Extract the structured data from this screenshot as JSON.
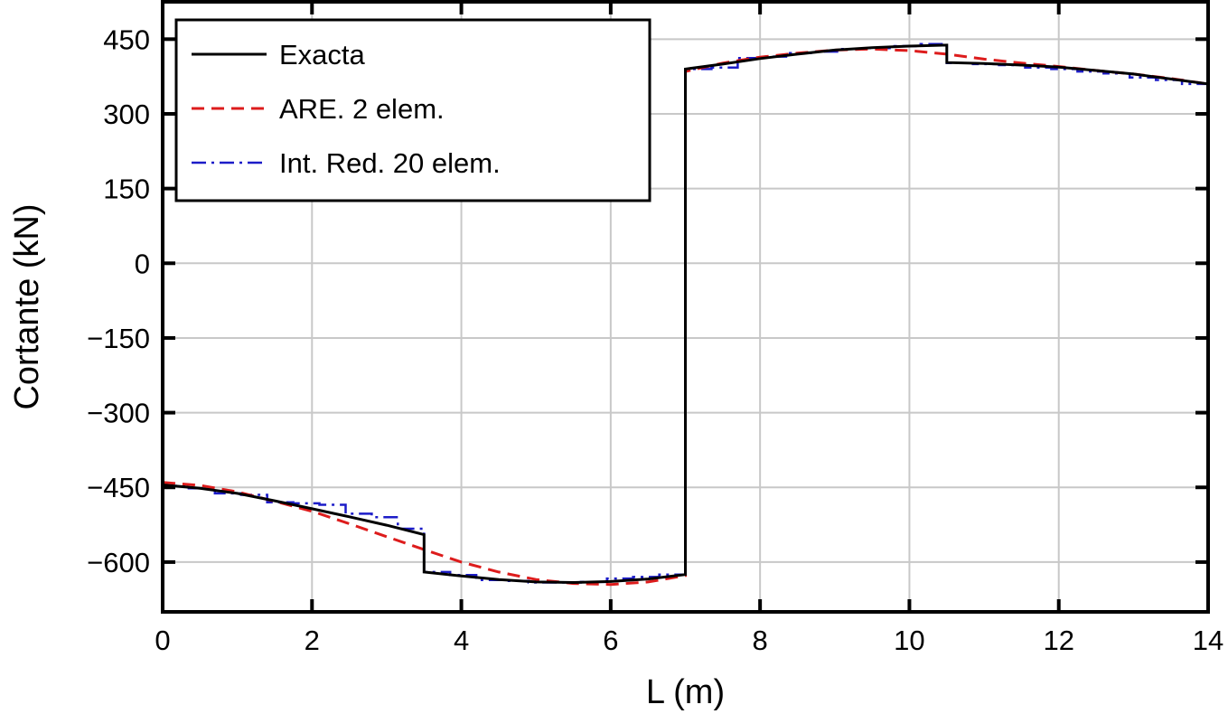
{
  "chart_data": {
    "type": "line",
    "xlabel": "L (m)",
    "ylabel": "Cortante (kN)",
    "xlim": [
      0,
      14
    ],
    "ylim": [
      -700,
      525
    ],
    "xticks": [
      0,
      2,
      4,
      6,
      8,
      10,
      12,
      14
    ],
    "yticks": [
      -600,
      -450,
      -300,
      -150,
      0,
      150,
      300,
      450
    ],
    "xtick_labels": [
      "0",
      "2",
      "4",
      "6",
      "8",
      "10",
      "12",
      "14"
    ],
    "ytick_labels": [
      "−600",
      "−450",
      "−300",
      "−150",
      "0",
      "150",
      "300",
      "450"
    ],
    "grid": true,
    "legend_position": "top-left",
    "series": [
      {
        "name": "Exacta",
        "color": "#000000",
        "style": "solid",
        "x": [
          0,
          0.5,
          1.0,
          1.5,
          2.0,
          2.5,
          3.0,
          3.5,
          3.5,
          4.0,
          4.5,
          5.0,
          5.5,
          6.0,
          6.5,
          7.0,
          7.0,
          7.5,
          8.0,
          8.5,
          9.0,
          9.5,
          10.0,
          10.5,
          10.5,
          11.0,
          11.5,
          12.0,
          12.5,
          13.0,
          13.5,
          14.0
        ],
        "y": [
          -445,
          -452,
          -462,
          -477,
          -493,
          -509,
          -526,
          -545,
          -620,
          -628,
          -635,
          -640,
          -641,
          -639,
          -634,
          -625,
          390,
          400,
          411,
          420,
          428,
          433,
          436,
          438,
          403,
          401,
          398,
          394,
          387,
          380,
          370,
          360
        ]
      },
      {
        "name": "ARE. 2 elem.",
        "color": "#dd1c1c",
        "style": "dashed",
        "x": [
          0,
          0.5,
          1.0,
          1.5,
          2.0,
          2.5,
          3.0,
          3.5,
          4.0,
          4.5,
          5.0,
          5.5,
          6.0,
          6.5,
          7.0,
          7.0,
          7.5,
          8.0,
          8.5,
          9.0,
          9.5,
          10.0,
          10.5,
          11.0,
          11.5,
          12.0,
          12.5,
          13.0,
          13.5,
          14.0
        ],
        "y": [
          -440,
          -446,
          -459,
          -478,
          -498,
          -523,
          -549,
          -575,
          -600,
          -620,
          -635,
          -643,
          -645,
          -640,
          -627,
          385,
          402,
          414,
          422,
          428,
          430,
          427,
          420,
          410,
          402,
          395,
          387,
          380,
          371,
          360
        ]
      },
      {
        "name": "Int. Red. 20 elem.",
        "color": "#1c1cc8",
        "style": "dashdot",
        "x": [
          0,
          0.35,
          0.35,
          0.7,
          0.7,
          1.05,
          1.05,
          1.4,
          1.4,
          1.75,
          1.75,
          2.1,
          2.1,
          2.45,
          2.45,
          2.8,
          2.8,
          3.15,
          3.15,
          3.5,
          3.5,
          3.85,
          3.85,
          4.2,
          4.2,
          4.55,
          4.55,
          4.9,
          4.9,
          5.25,
          5.25,
          5.6,
          5.6,
          5.95,
          5.95,
          6.3,
          6.3,
          6.65,
          6.65,
          7.0,
          7.0,
          7.35,
          7.35,
          7.7,
          7.7,
          8.05,
          8.05,
          8.4,
          8.4,
          8.75,
          8.75,
          9.1,
          9.1,
          9.45,
          9.45,
          9.8,
          9.8,
          10.15,
          10.15,
          10.5,
          10.5,
          10.85,
          10.85,
          11.2,
          11.2,
          11.55,
          11.55,
          11.9,
          11.9,
          12.25,
          12.25,
          12.6,
          12.6,
          12.95,
          12.95,
          13.3,
          13.3,
          13.65,
          13.65,
          14.0
        ],
        "y": [
          -447,
          -447,
          -452,
          -452,
          -462,
          -462,
          -465,
          -465,
          -480,
          -480,
          -482,
          -482,
          -485,
          -485,
          -503,
          -503,
          -510,
          -510,
          -533,
          -533,
          -620,
          -620,
          -626,
          -626,
          -636,
          -636,
          -638,
          -638,
          -641,
          -641,
          -641,
          -641,
          -640,
          -640,
          -633,
          -633,
          -630,
          -630,
          -625,
          -625,
          390,
          390,
          393,
          393,
          412,
          412,
          415,
          415,
          422,
          422,
          425,
          425,
          430,
          430,
          432,
          432,
          436,
          436,
          440,
          440,
          402,
          402,
          400,
          400,
          398,
          398,
          393,
          393,
          390,
          390,
          385,
          385,
          381,
          381,
          373,
          373,
          368,
          368,
          360,
          360
        ]
      }
    ]
  }
}
